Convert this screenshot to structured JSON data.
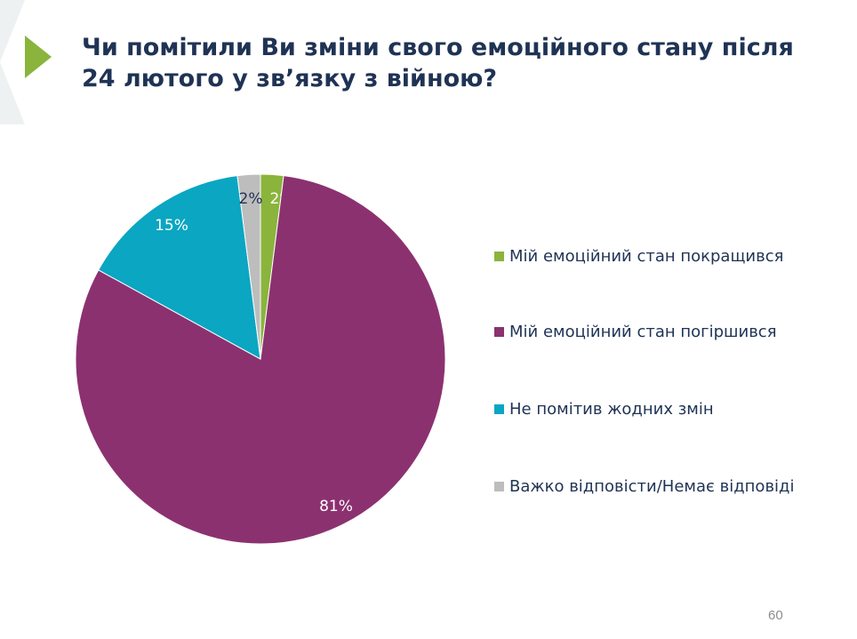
{
  "slide": {
    "title": "Чи помітили Ви зміни свого емоційного стану після 24 лютого у зв’язку з війною?",
    "page_number": "60",
    "accent_color": "#8ab43c"
  },
  "chart_data": {
    "type": "pie",
    "title": "Чи помітили Ви зміни свого емоційного стану після 24 лютого у зв’язку з війною?",
    "unit": "%",
    "legend_position": "right",
    "slices": [
      {
        "label": "Мій емоційний стан покращився",
        "value": 2,
        "display": "2%",
        "color": "#8ab43c",
        "label_color": "#ffffff"
      },
      {
        "label": "Мій емоційний стан погіршився",
        "value": 81,
        "display": "81%",
        "color": "#8c3170",
        "label_color": "#ffffff"
      },
      {
        "label": "Не помітив жодних змін",
        "value": 15,
        "display": "15%",
        "color": "#0aa6c2",
        "label_color": "#ffffff"
      },
      {
        "label": "Важко відповісти/Немає відповіді",
        "value": 2,
        "display": "2%",
        "color": "#bdbdbd",
        "label_color": "#1f3354"
      }
    ]
  }
}
